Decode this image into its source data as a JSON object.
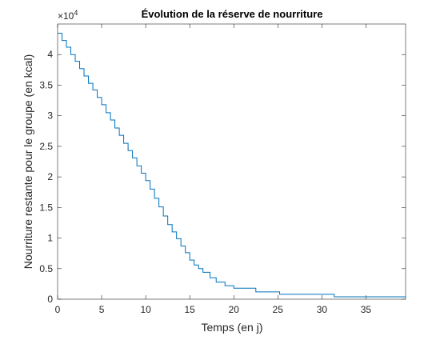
{
  "chart_data": {
    "type": "stairs",
    "title": "Évolution de la réserve de nourriture",
    "xlabel": "Temps (en j)",
    "ylabel": "Nourriture restante pour le groupe (en kcal)",
    "y_exponent": {
      "base": "×10",
      "power": "4"
    },
    "x": [
      0,
      0.5,
      1,
      1.5,
      2,
      2.5,
      3,
      3.5,
      4,
      4.5,
      5,
      5.5,
      6,
      6.5,
      7,
      7.5,
      8,
      8.5,
      9,
      9.5,
      10,
      10.5,
      11,
      11.5,
      12,
      12.5,
      13,
      13.5,
      14,
      14.5,
      15,
      15.5,
      16,
      16.5,
      17.3,
      18,
      19,
      20,
      22.5,
      25.2,
      31.4,
      39.5
    ],
    "series": [
      {
        "color": "#0072bd",
        "values": [
          4.35,
          4.23,
          4.12,
          4.0,
          3.89,
          3.77,
          3.65,
          3.53,
          3.42,
          3.3,
          3.18,
          3.05,
          2.93,
          2.8,
          2.68,
          2.55,
          2.43,
          2.31,
          2.18,
          2.06,
          1.94,
          1.8,
          1.65,
          1.51,
          1.36,
          1.22,
          1.1,
          0.99,
          0.87,
          0.76,
          0.64,
          0.56,
          0.5,
          0.44,
          0.35,
          0.28,
          0.22,
          0.18,
          0.12,
          0.08,
          0.04,
          0.02
        ]
      }
    ],
    "xlim": [
      0,
      39.5
    ],
    "ylim": [
      0,
      4.5
    ],
    "xticks": [
      0,
      5,
      10,
      15,
      20,
      25,
      30,
      35
    ],
    "yticks": [
      0,
      0.5,
      1,
      1.5,
      2,
      2.5,
      3,
      3.5,
      4
    ],
    "grid": false
  }
}
